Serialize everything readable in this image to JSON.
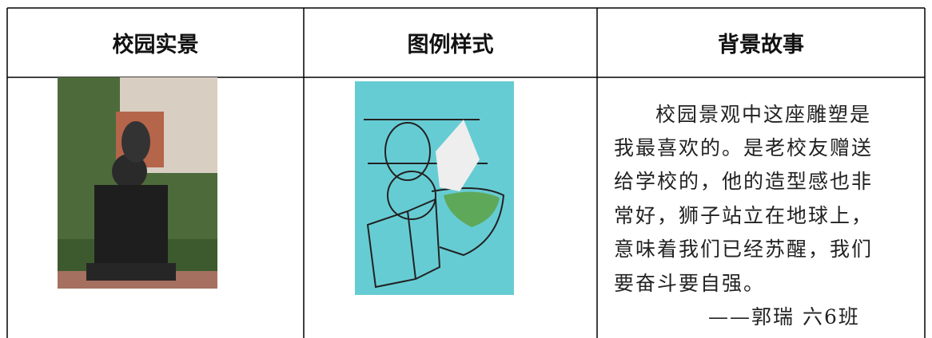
{
  "table": {
    "headers": [
      "校园实景",
      "图例样式",
      "背景故事"
    ],
    "story": {
      "lines": [
        "校园景观中这座雕塑是",
        "我最喜欢的。是老校友赠送",
        "给学校的，他的造型感也非",
        "常好，狮子站立在地球上，",
        "意味着我们已经苏醒，我们",
        "要奋斗要自强。"
      ],
      "signature": "——郭瑞 六6班"
    }
  }
}
